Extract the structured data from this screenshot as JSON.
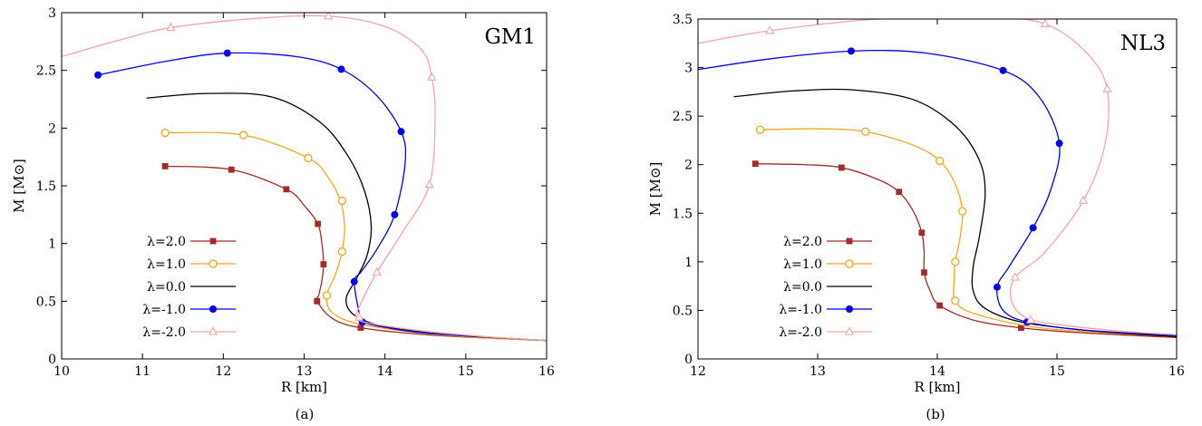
{
  "chart_data": [
    {
      "type": "line",
      "panel_label": "GM1",
      "caption": "(a)",
      "xlabel": "R [km]",
      "ylabel": "M [M⊙]",
      "xlim": [
        10,
        16
      ],
      "ylim": [
        0,
        3
      ],
      "xticks": [
        10,
        11,
        12,
        13,
        14,
        15,
        16
      ],
      "yticks": [
        0,
        0.5,
        1,
        1.5,
        2,
        2.5,
        3
      ],
      "ytick_labels": [
        "0",
        "0.5",
        "1",
        "1.5",
        "2",
        "2.5",
        "3"
      ],
      "grid": false,
      "legend_position": "bottom-left",
      "series": [
        {
          "name": "λ=2.0",
          "color": "#a52a2a",
          "marker": "square",
          "points": [
            [
              11.28,
              1.67
            ],
            [
              12.1,
              1.64
            ],
            [
              12.78,
              1.47
            ],
            [
              13.0,
              1.33
            ],
            [
              13.17,
              1.17
            ],
            [
              13.22,
              1.0
            ],
            [
              13.24,
              0.82
            ],
            [
              13.22,
              0.68
            ],
            [
              13.18,
              0.55
            ],
            [
              13.16,
              0.5
            ],
            [
              13.35,
              0.35
            ],
            [
              13.7,
              0.27
            ],
            [
              14.5,
              0.21
            ],
            [
              15.3,
              0.18
            ],
            [
              16.0,
              0.16
            ]
          ],
          "markers": [
            [
              11.28,
              1.67
            ],
            [
              12.1,
              1.64
            ],
            [
              12.78,
              1.47
            ],
            [
              13.17,
              1.17
            ],
            [
              13.24,
              0.82
            ],
            [
              13.16,
              0.5
            ],
            [
              13.7,
              0.27
            ]
          ]
        },
        {
          "name": "λ=1.0",
          "color": "#f0a820",
          "marker": "open-circle",
          "points": [
            [
              11.28,
              1.96
            ],
            [
              12.25,
              1.94
            ],
            [
              13.05,
              1.74
            ],
            [
              13.3,
              1.57
            ],
            [
              13.45,
              1.37
            ],
            [
              13.5,
              1.15
            ],
            [
              13.47,
              0.93
            ],
            [
              13.38,
              0.72
            ],
            [
              13.28,
              0.55
            ],
            [
              13.35,
              0.4
            ],
            [
              13.7,
              0.3
            ],
            [
              14.5,
              0.22
            ],
            [
              15.3,
              0.18
            ],
            [
              16.0,
              0.16
            ]
          ],
          "markers": [
            [
              11.28,
              1.96
            ],
            [
              12.25,
              1.94
            ],
            [
              13.05,
              1.74
            ],
            [
              13.47,
              1.37
            ],
            [
              13.47,
              0.93
            ],
            [
              13.28,
              0.55
            ]
          ]
        },
        {
          "name": "λ=0.0",
          "color": "#000000",
          "marker": "none",
          "points": [
            [
              11.05,
              2.26
            ],
            [
              11.8,
              2.3
            ],
            [
              12.6,
              2.27
            ],
            [
              13.2,
              2.05
            ],
            [
              13.55,
              1.75
            ],
            [
              13.75,
              1.45
            ],
            [
              13.83,
              1.15
            ],
            [
              13.78,
              0.9
            ],
            [
              13.65,
              0.7
            ],
            [
              13.52,
              0.52
            ],
            [
              13.62,
              0.38
            ],
            [
              14.0,
              0.28
            ],
            [
              14.8,
              0.21
            ],
            [
              16.0,
              0.16
            ]
          ],
          "markers": []
        },
        {
          "name": "λ=-1.0",
          "color": "#0000ee",
          "marker": "filled-circle",
          "points": [
            [
              10.45,
              2.46
            ],
            [
              11.3,
              2.58
            ],
            [
              12.05,
              2.65
            ],
            [
              12.9,
              2.62
            ],
            [
              13.46,
              2.51
            ],
            [
              13.9,
              2.28
            ],
            [
              14.2,
              1.97
            ],
            [
              14.25,
              1.7
            ],
            [
              14.12,
              1.25
            ],
            [
              13.9,
              0.95
            ],
            [
              13.7,
              0.75
            ],
            [
              13.62,
              0.67
            ],
            [
              13.68,
              0.4
            ],
            [
              13.72,
              0.32
            ],
            [
              14.3,
              0.24
            ],
            [
              15.0,
              0.2
            ],
            [
              16.0,
              0.16
            ]
          ],
          "markers": [
            [
              10.45,
              2.46
            ],
            [
              12.05,
              2.65
            ],
            [
              13.46,
              2.51
            ],
            [
              14.2,
              1.97
            ],
            [
              14.12,
              1.25
            ],
            [
              13.62,
              0.67
            ],
            [
              13.72,
              0.32
            ]
          ]
        },
        {
          "name": "λ=-2.0",
          "color": "#f4a6a6",
          "marker": "open-triangle",
          "points": [
            [
              10.0,
              2.62
            ],
            [
              10.7,
              2.76
            ],
            [
              11.35,
              2.87
            ],
            [
              12.4,
              2.95
            ],
            [
              13.3,
              2.97
            ],
            [
              14.0,
              2.88
            ],
            [
              14.45,
              2.68
            ],
            [
              14.58,
              2.44
            ],
            [
              14.62,
              2.1
            ],
            [
              14.55,
              1.51
            ],
            [
              14.2,
              1.08
            ],
            [
              13.9,
              0.75
            ],
            [
              13.68,
              0.45
            ],
            [
              13.65,
              0.36
            ],
            [
              13.8,
              0.31
            ],
            [
              14.5,
              0.24
            ],
            [
              15.3,
              0.19
            ],
            [
              16.0,
              0.16
            ]
          ],
          "markers": [
            [
              11.35,
              2.87
            ],
            [
              13.3,
              2.97
            ],
            [
              14.58,
              2.44
            ],
            [
              14.55,
              1.51
            ],
            [
              13.9,
              0.75
            ],
            [
              13.68,
              0.36
            ]
          ]
        }
      ]
    },
    {
      "type": "line",
      "panel_label": "NL3",
      "caption": "(b)",
      "xlabel": "R [km]",
      "ylabel": "M [M⊙]",
      "xlim": [
        12,
        16
      ],
      "ylim": [
        0,
        3.5
      ],
      "xticks": [
        12,
        13,
        14,
        15,
        16
      ],
      "yticks": [
        0,
        0.5,
        1,
        1.5,
        2,
        2.5,
        3,
        3.5
      ],
      "ytick_labels": [
        "0",
        "0.5",
        "1",
        "1.5",
        "2",
        "2.5",
        "3",
        "3.5"
      ],
      "grid": false,
      "legend_position": "bottom-left",
      "series": [
        {
          "name": "λ=2.0",
          "color": "#a52a2a",
          "marker": "square",
          "points": [
            [
              12.48,
              2.01
            ],
            [
              12.9,
              2.0
            ],
            [
              13.2,
              1.97
            ],
            [
              13.5,
              1.85
            ],
            [
              13.68,
              1.72
            ],
            [
              13.8,
              1.52
            ],
            [
              13.87,
              1.3
            ],
            [
              13.89,
              1.1
            ],
            [
              13.89,
              0.89
            ],
            [
              13.94,
              0.7
            ],
            [
              14.02,
              0.55
            ],
            [
              14.3,
              0.4
            ],
            [
              14.7,
              0.32
            ],
            [
              15.2,
              0.27
            ],
            [
              16.0,
              0.22
            ]
          ],
          "markers": [
            [
              12.48,
              2.01
            ],
            [
              13.2,
              1.97
            ],
            [
              13.68,
              1.72
            ],
            [
              13.87,
              1.3
            ],
            [
              13.89,
              0.89
            ],
            [
              14.02,
              0.55
            ],
            [
              14.7,
              0.32
            ]
          ]
        },
        {
          "name": "λ=1.0",
          "color": "#f0a820",
          "marker": "open-circle",
          "points": [
            [
              12.52,
              2.36
            ],
            [
              13.0,
              2.37
            ],
            [
              13.4,
              2.34
            ],
            [
              13.8,
              2.2
            ],
            [
              14.02,
              2.04
            ],
            [
              14.15,
              1.8
            ],
            [
              14.21,
              1.52
            ],
            [
              14.19,
              1.25
            ],
            [
              14.15,
              1.0
            ],
            [
              14.14,
              0.8
            ],
            [
              14.15,
              0.6
            ],
            [
              14.3,
              0.47
            ],
            [
              14.8,
              0.33
            ],
            [
              15.4,
              0.27
            ],
            [
              16.0,
              0.23
            ]
          ],
          "markers": [
            [
              12.52,
              2.36
            ],
            [
              13.4,
              2.34
            ],
            [
              14.02,
              2.04
            ],
            [
              14.21,
              1.52
            ],
            [
              14.15,
              1.0
            ],
            [
              14.15,
              0.6
            ]
          ]
        },
        {
          "name": "λ=0.0",
          "color": "#000000",
          "marker": "none",
          "points": [
            [
              12.3,
              2.7
            ],
            [
              12.8,
              2.76
            ],
            [
              13.3,
              2.77
            ],
            [
              13.8,
              2.67
            ],
            [
              14.15,
              2.4
            ],
            [
              14.35,
              2.05
            ],
            [
              14.4,
              1.7
            ],
            [
              14.35,
              1.25
            ],
            [
              14.3,
              0.95
            ],
            [
              14.3,
              0.7
            ],
            [
              14.4,
              0.52
            ],
            [
              14.7,
              0.38
            ],
            [
              15.2,
              0.3
            ],
            [
              15.6,
              0.26
            ],
            [
              16.0,
              0.23
            ]
          ],
          "markers": []
        },
        {
          "name": "λ=-1.0",
          "color": "#0000ee",
          "marker": "filled-circle",
          "points": [
            [
              12.0,
              2.98
            ],
            [
              12.6,
              3.09
            ],
            [
              13.28,
              3.17
            ],
            [
              13.9,
              3.15
            ],
            [
              14.55,
              2.97
            ],
            [
              14.85,
              2.7
            ],
            [
              15.02,
              2.22
            ],
            [
              14.95,
              1.75
            ],
            [
              14.8,
              1.35
            ],
            [
              14.6,
              0.95
            ],
            [
              14.5,
              0.74
            ],
            [
              14.55,
              0.5
            ],
            [
              14.75,
              0.38
            ],
            [
              15.2,
              0.3
            ],
            [
              16.0,
              0.24
            ]
          ],
          "markers": [
            [
              13.28,
              3.17
            ],
            [
              14.55,
              2.97
            ],
            [
              15.02,
              2.22
            ],
            [
              14.8,
              1.35
            ],
            [
              14.5,
              0.74
            ],
            [
              14.75,
              0.38
            ]
          ]
        },
        {
          "name": "λ=-2.0",
          "color": "#f4a6a6",
          "marker": "open-triangle",
          "points": [
            [
              12.0,
              3.25
            ],
            [
              12.6,
              3.38
            ],
            [
              13.5,
              3.5
            ],
            [
              14.4,
              3.52
            ],
            [
              14.9,
              3.45
            ],
            [
              15.25,
              3.15
            ],
            [
              15.42,
              2.78
            ],
            [
              15.4,
              2.2
            ],
            [
              15.22,
              1.63
            ],
            [
              14.9,
              1.1
            ],
            [
              14.65,
              0.84
            ],
            [
              14.62,
              0.6
            ],
            [
              14.75,
              0.42
            ],
            [
              15.1,
              0.34
            ],
            [
              15.6,
              0.28
            ],
            [
              16.0,
              0.25
            ]
          ],
          "markers": [
            [
              12.6,
              3.38
            ],
            [
              14.9,
              3.45
            ],
            [
              15.42,
              2.78
            ],
            [
              15.22,
              1.63
            ],
            [
              14.65,
              0.84
            ],
            [
              14.78,
              0.4
            ]
          ]
        }
      ]
    }
  ]
}
